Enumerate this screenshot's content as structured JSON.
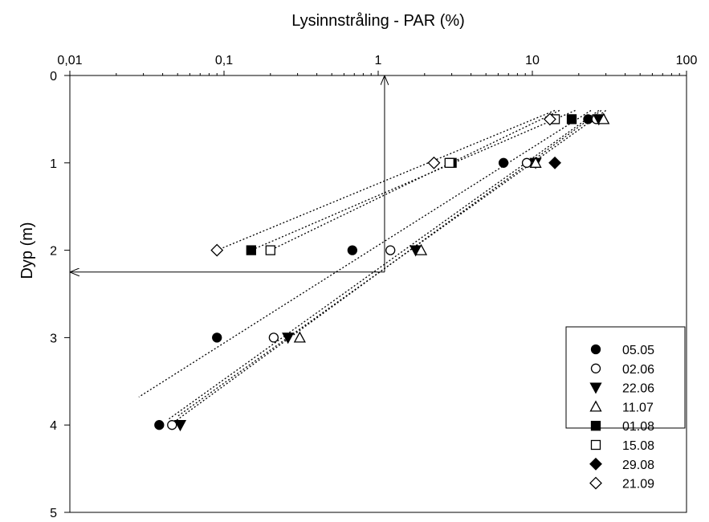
{
  "chart_data": {
    "type": "scatter",
    "title": "",
    "xlabel": "Lysinnstråling - PAR (%)",
    "ylabel": "Dyp (m)",
    "x_scale": "log",
    "x_axis_position": "top",
    "y_inverted": true,
    "xlim": [
      0.01,
      100
    ],
    "ylim": [
      0,
      5
    ],
    "x_ticks": [
      "0,01",
      "0,1",
      "1",
      "10",
      "100"
    ],
    "y_ticks": [
      "0",
      "1",
      "2",
      "3",
      "4",
      "5"
    ],
    "grid": false,
    "legend_position": "bottom-right",
    "series": [
      {
        "name": "05.05",
        "marker": "filled-circle",
        "points": [
          [
            23,
            0.5
          ],
          [
            6.5,
            1.0
          ],
          [
            0.68,
            2.0
          ],
          [
            0.09,
            3.0
          ],
          [
            0.038,
            4.0
          ]
        ],
        "trend": [
          [
            24,
            0.4
          ],
          [
            0.028,
            3.68
          ]
        ]
      },
      {
        "name": "02.06",
        "marker": "open-circle",
        "points": [
          [
            26,
            0.5
          ],
          [
            9.2,
            1.0
          ],
          [
            1.2,
            2.0
          ],
          [
            0.21,
            3.0
          ],
          [
            0.046,
            4.0
          ]
        ],
        "trend": [
          [
            27,
            0.4
          ],
          [
            0.044,
            3.93
          ]
        ]
      },
      {
        "name": "22.06",
        "marker": "filled-triangle-down",
        "points": [
          [
            27,
            0.5
          ],
          [
            10.5,
            1.0
          ],
          [
            1.75,
            2.0
          ],
          [
            0.26,
            3.0
          ],
          [
            0.052,
            4.0
          ]
        ],
        "trend": [
          [
            28,
            0.4
          ],
          [
            0.048,
            3.96
          ]
        ]
      },
      {
        "name": "11.07",
        "marker": "open-triangle-up",
        "points": [
          [
            29,
            0.5
          ],
          [
            10.5,
            1.0
          ],
          [
            1.9,
            2.0
          ],
          [
            0.31,
            3.0
          ]
        ],
        "trend": [
          [
            30,
            0.4
          ],
          [
            0.05,
            3.9
          ]
        ]
      },
      {
        "name": "01.08",
        "marker": "filled-square",
        "points": [
          [
            18,
            0.5
          ],
          [
            3.0,
            1.0
          ],
          [
            0.15,
            2.0
          ]
        ],
        "trend": [
          [
            19,
            0.4
          ],
          [
            0.15,
            2.0
          ]
        ]
      },
      {
        "name": "15.08",
        "marker": "open-square",
        "points": [
          [
            14,
            0.5
          ],
          [
            2.9,
            1.0
          ],
          [
            0.2,
            2.0
          ]
        ],
        "trend": [
          [
            15,
            0.4
          ],
          [
            0.2,
            2.0
          ]
        ]
      },
      {
        "name": "29.08",
        "marker": "filled-diamond",
        "points": [
          [
            14,
            1.0
          ]
        ],
        "trend": []
      },
      {
        "name": "21.09",
        "marker": "open-diamond",
        "points": [
          [
            13,
            0.5
          ],
          [
            2.3,
            1.0
          ],
          [
            0.09,
            2.0
          ]
        ],
        "trend": [
          [
            14,
            0.4
          ],
          [
            0.09,
            2.0
          ]
        ]
      }
    ],
    "annotations": [
      {
        "type": "arrow",
        "from": [
          1.1,
          2.25
        ],
        "to": [
          1.1,
          0.0
        ]
      },
      {
        "type": "arrow",
        "from": [
          1.1,
          2.25
        ],
        "to": [
          0.01,
          2.25
        ]
      }
    ]
  }
}
